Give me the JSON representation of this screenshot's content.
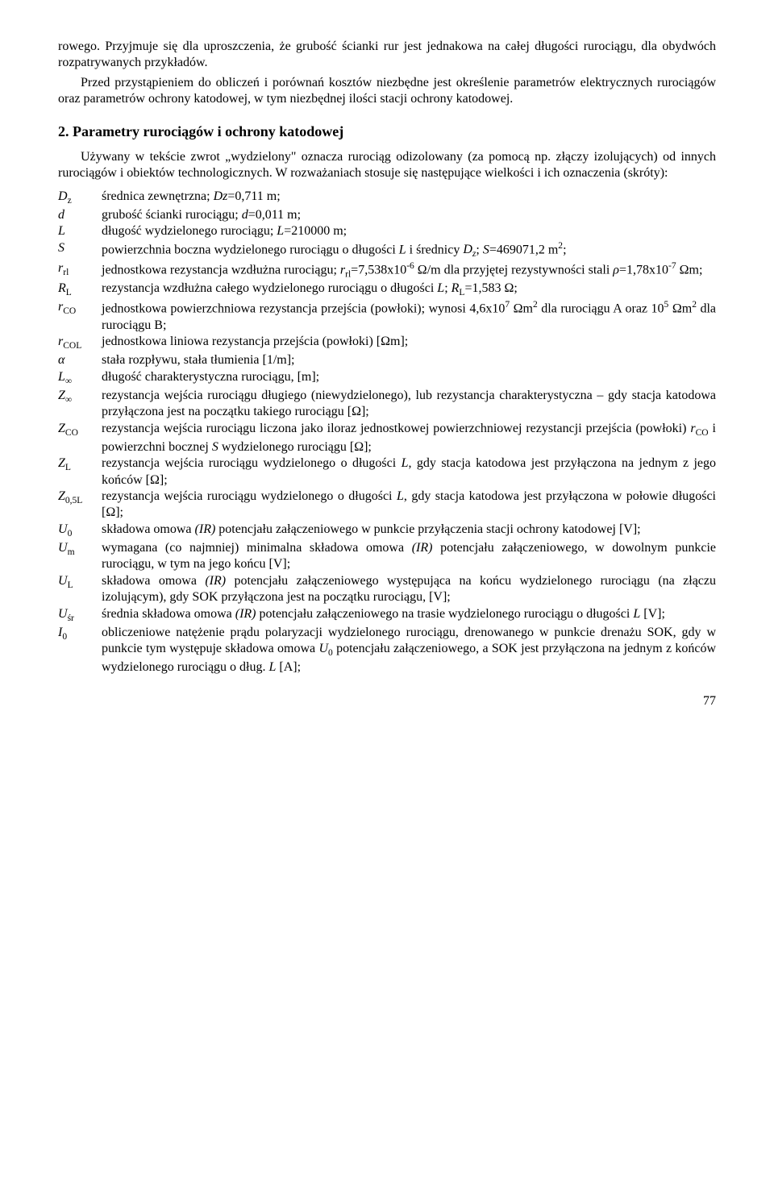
{
  "para1": "rowego. Przyjmuje się dla uproszczenia, że grubość ścianki rur jest jednakowa na całej długości rurociągu, dla obydwóch rozpatrywanych przykładów.",
  "para2": "Przed przystąpieniem do obliczeń i porównań kosztów niezbędne jest określenie parametrów elektrycznych rurociągów oraz parametrów ochrony katodowej, w tym niezbędnej ilości stacji ochrony katodowej.",
  "section_title": "2. Parametry rurociągów i ochrony katodowej",
  "para3": "Używany w tekście zwrot „wydzielony\" oznacza rurociąg odizolowany (za pomocą np. złączy izolujących) od innych rurociągów i obiektów technologicznych. W rozważaniach stosuje się następujące wielkości i ich oznaczenia (skróty):",
  "defs": {
    "Dz": {
      "term_html": "D<span class='sub'>z</span>",
      "desc_html": "średnica zewnętrzna; <span class='it'>Dz</span>=0,711 m;"
    },
    "d": {
      "term_html": "d",
      "desc_html": "grubość ścianki rurociągu; <span class='it'>d</span>=0,011 m;"
    },
    "L": {
      "term_html": "L",
      "desc_html": "długość wydzielonego rurociągu; <span class='it'>L</span>=210000 m;"
    },
    "S": {
      "term_html": "S",
      "desc_html": "powierzchnia boczna wydzielonego rurociągu o długości <span class='it'>L</span> i średnicy <span class='it'>D<sub>z</sub></span>; <span class='it'>S</span>=469071,2 m<sup>2</sup>;"
    },
    "rrl": {
      "term_html": "r<span class='sub'>rl</span>",
      "desc_html": "jednostkowa rezystancja wzdłużna rurociągu; <span class='it'>r</span><sub>rl</sub>=7,538x10<sup>-6</sup> Ω/m dla przyjętej rezystywności stali <span class='it'>ρ</span>=1,78x10<sup>-7</sup> Ωm;"
    },
    "RL": {
      "term_html": "R<span class='sub'>L</span>",
      "desc_html": "rezystancja wzdłużna całego wydzielonego rurociągu o długości <span class='it'>L</span>; <span class='it'>R</span><sub>L</sub>=1,583 Ω;"
    },
    "rCO": {
      "term_html": "r<span class='sub'>CO</span>",
      "desc_html": "jednostkowa powierzchniowa rezystancja przejścia (powłoki); wynosi 4,6x10<sup>7</sup> Ωm<sup>2</sup> dla rurociągu A oraz 10<sup>5</sup> Ωm<sup>2</sup> dla rurociągu B;"
    },
    "rCOL": {
      "term_html": "r<span class='sub'>COL</span>",
      "desc_html": "jednostkowa liniowa rezystancja przejścia (powłoki) [Ωm];"
    },
    "alpha": {
      "term_html": "α",
      "desc_html": "stała rozpływu, stała tłumienia [1/m];"
    },
    "Linf": {
      "term_html": "L<span class='sub'>∞</span>",
      "desc_html": "długość charakterystyczna rurociągu, [m];"
    },
    "Zinf": {
      "term_html": "Z<span class='sub'>∞</span>",
      "desc_html": "rezystancja wejścia rurociągu długiego (niewydzielonego), lub rezystancja charakterystyczna – gdy stacja katodowa przyłączona jest na początku takiego rurociągu [Ω];"
    },
    "ZCO": {
      "term_html": "Z<span class='sub'>CO</span>",
      "desc_html": "rezystancja wejścia rurociągu liczona jako iloraz jednostkowej powierzchniowej rezystancji przejścia (powłoki) <span class='it'>r</span><sub>CO</sub> i powierzchni bocznej <span class='it'>S</span> wydzielonego rurociągu [Ω];"
    },
    "ZL": {
      "term_html": "Z<span class='sub'>L</span>",
      "desc_html": "rezystancja wejścia rurociągu wydzielonego o długości <span class='it'>L</span>, gdy stacja katodowa jest przyłączona na jednym z jego końców [Ω];"
    },
    "Z05L": {
      "term_html": "Z<span class='sub'>0,5L</span>",
      "desc_html": "rezystancja wejścia rurociągu wydzielonego o długości <span class='it'>L</span>, gdy stacja katodowa jest przyłączona w połowie długości [Ω];"
    },
    "U0": {
      "term_html": "U<span class='sub'>0</span>",
      "desc_html": "składowa omowa <span class='it'>(IR)</span> potencjału załączeniowego w punkcie przyłączenia stacji ochrony katodowej [V];"
    },
    "Um": {
      "term_html": "U<span class='sub'>m</span>",
      "desc_html": "wymagana (co najmniej) minimalna składowa omowa <span class='it'>(IR)</span> potencjału załączeniowego, w dowolnym punkcie rurociągu, w tym na jego końcu [V];"
    },
    "UL": {
      "term_html": "U<span class='sub'>L</span>",
      "desc_html": "składowa omowa <span class='it'>(IR)</span> potencjału załączeniowego występująca na końcu wydzielonego rurociągu (na złączu izolującym), gdy SOK przyłączona jest na początku rurociągu, [V];"
    },
    "Usr": {
      "term_html": "U<span class='sub'>śr</span>",
      "desc_html": "średnia składowa omowa <span class='it'>(IR)</span> potencjału załączeniowego na trasie wydzielonego rurociągu o długości <span class='it'>L</span> [V];"
    },
    "I0": {
      "term_html": "I<span class='sub'>0</span>",
      "desc_html": "obliczeniowe natężenie prądu polaryzacji wydzielonego rurociągu, drenowanego w punkcie drenażu SOK, gdy w punkcie tym występuje składowa omowa <span class='it'>U</span><sub>0</sub> potencjału załączeniowego, a SOK jest przyłączona na jednym z końców wydzielonego rurociągu o dług. <span class='it'>L</span> [A];"
    }
  },
  "def_order": [
    "Dz",
    "d",
    "L",
    "S",
    "rrl",
    "RL",
    "rCO",
    "rCOL",
    "alpha",
    "Linf",
    "Zinf",
    "ZCO",
    "ZL",
    "Z05L",
    "U0",
    "Um",
    "UL",
    "Usr",
    "I0"
  ],
  "page_number": "77"
}
